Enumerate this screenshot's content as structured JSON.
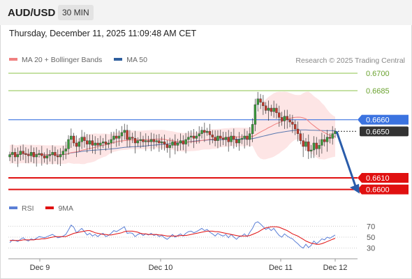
{
  "header": {
    "symbol": "AUD/USD",
    "timeframe": "30 MIN",
    "datetime": "Thursday, December 11, 2025 11:09:48 AM CET"
  },
  "legend": {
    "items": [
      {
        "label": "MA 20 + Bollinger Bands",
        "color": "#f08080"
      },
      {
        "label": "MA 50",
        "color": "#2f5f9e"
      }
    ],
    "credit": "Research © 2025 Trading Central"
  },
  "rsi_legend": {
    "items": [
      {
        "label": "RSI",
        "color": "#5b7fd6"
      },
      {
        "label": "9MA",
        "color": "#e01010"
      }
    ]
  },
  "chart_data": [
    {
      "type": "candlestick",
      "ylim": [
        0.6595,
        0.6703
      ],
      "x_ticks": [
        "Dec 9",
        "Dec 10",
        "Dec 11",
        "Dec 12"
      ],
      "levels": [
        {
          "value": 0.67,
          "label": "0.6700",
          "kind": "resistance",
          "color": "#8bc34a"
        },
        {
          "value": 0.6685,
          "label": "0.6685",
          "kind": "resistance",
          "color": "#8bc34a"
        },
        {
          "value": 0.666,
          "label": "0.6660",
          "kind": "pivot",
          "color": "#3b73e0"
        },
        {
          "value": 0.665,
          "label": "0.6650",
          "kind": "last-price",
          "color": "#333333"
        },
        {
          "value": 0.661,
          "label": "0.6610",
          "kind": "support",
          "color": "#e01010"
        },
        {
          "value": 0.66,
          "label": "0.6600",
          "kind": "support",
          "color": "#e01010"
        }
      ],
      "forecast": {
        "from": 0.665,
        "to": 0.66,
        "direction": "down",
        "color": "#2a5caa"
      },
      "close": [
        0.663,
        0.6632,
        0.6628,
        0.663,
        0.6633,
        0.6631,
        0.663,
        0.6629,
        0.6632,
        0.6628,
        0.663,
        0.6631,
        0.6629,
        0.6627,
        0.6629,
        0.663,
        0.6632,
        0.6629,
        0.6628,
        0.663,
        0.6633,
        0.6635,
        0.6643,
        0.6646,
        0.664,
        0.6637,
        0.6641,
        0.6645,
        0.6642,
        0.6639,
        0.6642,
        0.6638,
        0.664,
        0.6638,
        0.664,
        0.6641,
        0.6639,
        0.664,
        0.6643,
        0.6646,
        0.6644,
        0.6646,
        0.6649,
        0.6651,
        0.6643,
        0.6645,
        0.6644,
        0.664,
        0.6642,
        0.6643,
        0.6641,
        0.6642,
        0.6641,
        0.6643,
        0.6641,
        0.6642,
        0.664,
        0.6641,
        0.6639,
        0.6636,
        0.6638,
        0.6641,
        0.6638,
        0.664,
        0.6642,
        0.6639,
        0.6643,
        0.6645,
        0.6646,
        0.6644,
        0.6646,
        0.6648,
        0.6651,
        0.6649,
        0.665,
        0.6647,
        0.6645,
        0.6642,
        0.6646,
        0.6644,
        0.6643,
        0.6645,
        0.6641,
        0.6646,
        0.6643,
        0.664,
        0.6643,
        0.6644,
        0.6646,
        0.6643,
        0.6648,
        0.6656,
        0.6673,
        0.6678,
        0.6675,
        0.6672,
        0.6668,
        0.667,
        0.6667,
        0.667,
        0.6666,
        0.6662,
        0.6659,
        0.6663,
        0.666,
        0.6658,
        0.6656,
        0.6652,
        0.6648,
        0.6642,
        0.6637,
        0.6641,
        0.6633,
        0.6634,
        0.664,
        0.6635,
        0.6638,
        0.6643,
        0.6641,
        0.6645,
        0.6644,
        0.6648,
        0.665
      ]
    },
    {
      "type": "line",
      "name": "RSI",
      "ylim": [
        22,
        78
      ],
      "y_ticks": [
        70,
        50,
        30
      ],
      "series": [
        {
          "name": "RSI",
          "color": "#5b7fd6",
          "values": [
            40,
            45,
            44,
            42,
            46,
            49,
            45,
            43,
            47,
            45,
            48,
            51,
            50,
            49,
            51,
            53,
            55,
            52,
            49,
            50,
            52,
            55,
            63,
            72,
            68,
            58,
            62,
            66,
            60,
            54,
            57,
            52,
            55,
            51,
            55,
            57,
            51,
            53,
            57,
            62,
            60,
            63,
            66,
            69,
            57,
            58,
            57,
            51,
            55,
            57,
            53,
            56,
            54,
            57,
            53,
            55,
            51,
            53,
            49,
            46,
            50,
            55,
            50,
            53,
            56,
            52,
            57,
            60,
            61,
            58,
            60,
            63,
            66,
            62,
            64,
            59,
            56,
            52,
            57,
            54,
            52,
            55,
            49,
            55,
            50,
            46,
            51,
            52,
            56,
            51,
            59,
            66,
            76,
            78,
            74,
            69,
            64,
            67,
            62,
            66,
            59,
            53,
            50,
            56,
            52,
            49,
            47,
            42,
            38,
            33,
            30,
            37,
            31,
            35,
            43,
            38,
            42,
            47,
            45,
            50,
            48,
            51,
            54
          ]
        },
        {
          "name": "9MA",
          "color": "#e01010",
          "values": [
            44,
            44,
            44,
            44,
            44,
            45,
            45,
            45,
            45,
            45,
            46,
            46,
            47,
            47,
            48,
            49,
            50,
            51,
            51,
            51,
            51,
            51,
            53,
            55,
            57,
            58,
            59,
            60,
            61,
            62,
            62,
            60,
            58,
            57,
            56,
            55,
            55,
            54,
            54,
            55,
            56,
            57,
            58,
            60,
            61,
            61,
            61,
            60,
            59,
            57,
            56,
            56,
            55,
            55,
            55,
            55,
            54,
            54,
            53,
            52,
            52,
            52,
            52,
            52,
            53,
            53,
            53,
            54,
            55,
            56,
            57,
            58,
            59,
            60,
            61,
            61,
            61,
            60,
            60,
            59,
            58,
            57,
            56,
            55,
            54,
            53,
            52,
            52,
            52,
            52,
            53,
            55,
            57,
            59,
            62,
            65,
            67,
            68,
            69,
            69,
            69,
            68,
            66,
            64,
            62,
            59,
            56,
            54,
            52,
            49,
            46,
            43,
            41,
            39,
            38,
            37,
            37,
            38,
            40,
            42,
            44,
            46,
            48
          ]
        }
      ]
    }
  ]
}
